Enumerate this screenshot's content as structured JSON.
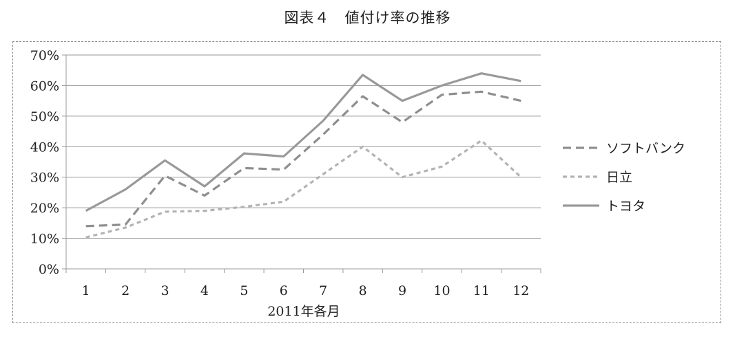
{
  "title": "図表４　値付け率の推移",
  "chart_data": {
    "type": "line",
    "title": "図表４　値付け率の推移",
    "xlabel": "2011年各月",
    "ylabel": "",
    "x": [
      "1",
      "2",
      "3",
      "4",
      "5",
      "6",
      "7",
      "8",
      "9",
      "10",
      "11",
      "12"
    ],
    "ylim": [
      0,
      70
    ],
    "y_ticks": [
      "0%",
      "10%",
      "20%",
      "30%",
      "40%",
      "50%",
      "60%",
      "70%"
    ],
    "grid": true,
    "legend_position": "right",
    "series": [
      {
        "name": "ソフトバンク",
        "style": "dashed",
        "color": "#8e8e8e",
        "values": [
          14,
          14.5,
          30.5,
          24,
          33,
          32.5,
          44,
          56.5,
          48,
          57,
          58,
          55
        ]
      },
      {
        "name": "日立",
        "style": "dotted",
        "color": "#b3b3b3",
        "values": [
          10.3,
          13.5,
          18.7,
          19,
          20.3,
          22,
          31,
          40,
          30,
          33.5,
          42,
          30
        ]
      },
      {
        "name": "トヨタ",
        "style": "solid",
        "color": "#999999",
        "values": [
          19,
          26,
          35.5,
          27,
          37.8,
          36.8,
          48.5,
          63.5,
          55,
          60,
          64,
          61.5
        ]
      }
    ]
  }
}
